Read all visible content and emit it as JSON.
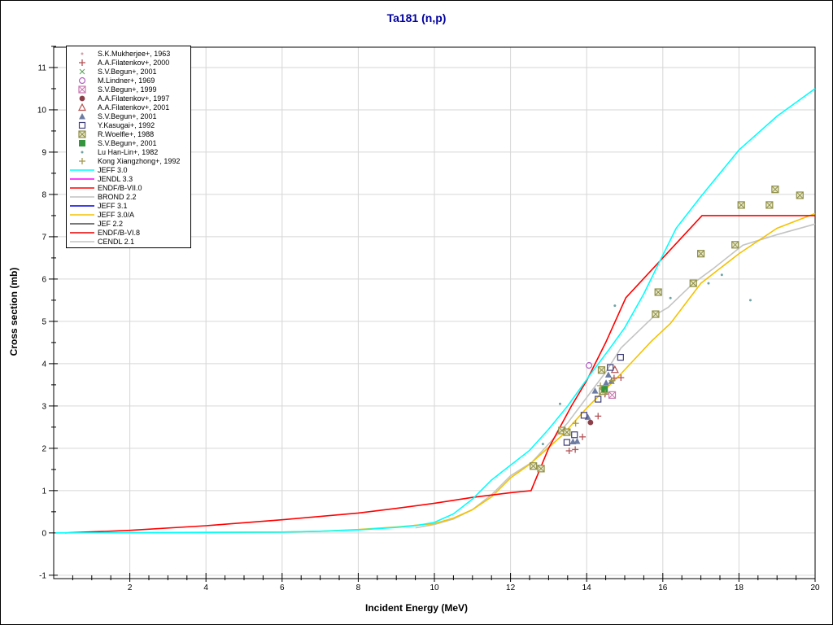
{
  "title": {
    "text": "Ta181 (n,p)"
  },
  "colors": {
    "background": "#ffffff",
    "frame": "#000000",
    "grid": "#d6d6d6",
    "title": "#0000a0"
  },
  "chart_data": {
    "type": "line",
    "title": "Ta181 (n,p)",
    "xlabel": "Incident Energy (MeV)",
    "ylabel": "Cross section (mb)",
    "xlim": [
      0,
      20
    ],
    "ylim": [
      -1.08,
      11.48
    ],
    "x_major_ticks": [
      2,
      4,
      6,
      8,
      10,
      12,
      14,
      16,
      18,
      20
    ],
    "y_major_ticks": [
      -1,
      0,
      1,
      2,
      3,
      4,
      5,
      6,
      7,
      8,
      9,
      10,
      11
    ],
    "minor_tick_step": 0.5,
    "grid": "on",
    "legend_position": "top-left",
    "series": [
      {
        "label": "S.K.Mukherjee+, 1963",
        "kind": "marker",
        "marker": "dot",
        "color": "#cfa0a8",
        "visible_in_plot": false,
        "points": []
      },
      {
        "label": "A.A.Filatenkov+, 2000",
        "kind": "marker",
        "marker": "plus",
        "color": "#b25458",
        "points": [
          [
            13.54,
            1.94
          ],
          [
            13.7,
            1.97
          ],
          [
            13.89,
            2.27
          ],
          [
            14.3,
            2.76
          ],
          [
            14.48,
            3.28
          ],
          [
            14.72,
            3.66
          ],
          [
            14.9,
            3.67
          ]
        ]
      },
      {
        "label": "S.V.Begun+, 2001",
        "kind": "marker",
        "marker": "x",
        "color": "#55a055",
        "visible_in_plot": false,
        "points": []
      },
      {
        "label": "M.Lindner+, 1969",
        "kind": "marker",
        "marker": "notched-circle",
        "color": "#b060c0",
        "points": [
          [
            14.06,
            3.96
          ]
        ]
      },
      {
        "label": "S.V.Begun+, 1999",
        "kind": "marker",
        "marker": "crossed-square",
        "color": "#c878b0",
        "points": [
          [
            14.67,
            3.26
          ]
        ]
      },
      {
        "label": "A.A.Filatenkov+, 1997",
        "kind": "marker",
        "marker": "blob",
        "color": "#8b4049",
        "points": [
          [
            14.1,
            2.61
          ]
        ]
      },
      {
        "label": "A.A.Filatenkov+, 2001",
        "kind": "marker",
        "marker": "triangle-open",
        "color": "#b4504e",
        "points": [
          [
            14.74,
            3.86
          ]
        ]
      },
      {
        "label": "S.V.Begun+, 2001",
        "kind": "marker",
        "marker": "triangle-filled",
        "color": "#6c7ca2",
        "points": [
          [
            13.64,
            2.16
          ],
          [
            13.75,
            2.17
          ],
          [
            14.03,
            2.74
          ],
          [
            14.22,
            3.36
          ],
          [
            14.51,
            3.55
          ],
          [
            14.57,
            3.74
          ],
          [
            14.65,
            3.59
          ]
        ]
      },
      {
        "label": "Y.Kasugai+, 1992",
        "kind": "marker",
        "marker": "square-open",
        "color": "#3f3f7a",
        "points": [
          [
            13.48,
            2.14
          ],
          [
            13.68,
            2.32
          ],
          [
            13.93,
            2.78
          ],
          [
            14.3,
            3.16
          ],
          [
            14.62,
            3.91
          ],
          [
            14.89,
            4.15
          ]
        ]
      },
      {
        "label": "R.Woelfle+, 1988",
        "kind": "marker",
        "marker": "crossed-square",
        "color": "#8f8f46",
        "fill": "#e9e9cf",
        "points": [
          [
            12.6,
            1.58
          ],
          [
            12.8,
            1.52
          ],
          [
            13.35,
            2.42
          ],
          [
            13.48,
            2.38
          ],
          [
            14.39,
            3.85
          ],
          [
            14.42,
            3.35
          ],
          [
            15.81,
            5.17
          ],
          [
            15.88,
            5.69
          ],
          [
            16.8,
            5.9
          ],
          [
            17.0,
            6.6
          ],
          [
            17.9,
            6.81
          ],
          [
            18.06,
            7.75
          ],
          [
            18.8,
            7.75
          ],
          [
            18.95,
            8.12
          ],
          [
            19.6,
            7.98
          ]
        ]
      },
      {
        "label": "S.V.Begun+, 2001",
        "kind": "marker",
        "marker": "square-filled",
        "color": "#35953f",
        "points": [
          [
            14.47,
            3.4
          ]
        ]
      },
      {
        "label": "Lu Han-Lin+, 1982",
        "kind": "marker",
        "marker": "dot",
        "color": "#6fa3a3",
        "points": [
          [
            12.85,
            2.1
          ],
          [
            13.3,
            3.05
          ],
          [
            14.74,
            5.37
          ],
          [
            16.2,
            5.55
          ],
          [
            17.2,
            5.9
          ],
          [
            17.55,
            6.1
          ],
          [
            18.3,
            5.5
          ]
        ]
      },
      {
        "label": "Kong Xiangzhong+, 1992",
        "kind": "marker",
        "marker": "plus",
        "color": "#a39a52",
        "points": [
          [
            13.71,
            2.59
          ],
          [
            14.36,
            3.48
          ],
          [
            14.49,
            3.31
          ],
          [
            14.67,
            3.6
          ]
        ]
      },
      {
        "label": "JEFF 3.0",
        "kind": "line",
        "color": "#00ffff",
        "points": [
          [
            0.05,
            0
          ],
          [
            3,
            0.01
          ],
          [
            6,
            0.02
          ],
          [
            7,
            0.04
          ],
          [
            8,
            0.07
          ],
          [
            9,
            0.13
          ],
          [
            9.5,
            0.17
          ],
          [
            10,
            0.25
          ],
          [
            10.5,
            0.45
          ],
          [
            11,
            0.8
          ],
          [
            11.5,
            1.25
          ],
          [
            12,
            1.6
          ],
          [
            12.5,
            1.95
          ],
          [
            13,
            2.45
          ],
          [
            13.5,
            3.0
          ],
          [
            14.1,
            3.75
          ],
          [
            14.6,
            4.35
          ],
          [
            15,
            4.85
          ],
          [
            15.5,
            5.65
          ],
          [
            15.8,
            6.2
          ],
          [
            16.35,
            7.2
          ],
          [
            17,
            7.95
          ],
          [
            18,
            9.05
          ],
          [
            19,
            9.85
          ],
          [
            20,
            10.5
          ]
        ]
      },
      {
        "label": "JENDL 3.3",
        "kind": "line",
        "color": "#ff00ff",
        "visible_in_plot": false,
        "points": []
      },
      {
        "label": "ENDF/B-VII.0",
        "kind": "line",
        "color": "#ff0000",
        "points": [
          [
            0.3,
            0
          ],
          [
            2,
            0.06
          ],
          [
            4,
            0.17
          ],
          [
            6,
            0.31
          ],
          [
            8,
            0.47
          ],
          [
            9,
            0.58
          ],
          [
            10,
            0.7
          ],
          [
            11,
            0.84
          ],
          [
            12,
            0.95
          ],
          [
            12.54,
            1.0
          ],
          [
            13,
            2.0
          ],
          [
            13.3,
            2.5
          ],
          [
            13.6,
            3.0
          ],
          [
            14,
            3.6
          ],
          [
            14.5,
            4.5
          ],
          [
            15.03,
            5.56
          ],
          [
            16,
            6.5
          ],
          [
            17.03,
            7.5
          ],
          [
            20,
            7.5
          ]
        ]
      },
      {
        "label": "BROND 2.2",
        "kind": "line",
        "color": "#c0c0c0",
        "visible_in_plot": false,
        "points": []
      },
      {
        "label": "JEFF 3.1",
        "kind": "line",
        "color": "#0000dc",
        "visible_in_plot": false,
        "points": []
      },
      {
        "label": "JEFF 3.0/A",
        "kind": "line",
        "color": "#f5c200",
        "points": [
          [
            0.05,
            0
          ],
          [
            6,
            0.02
          ],
          [
            7,
            0.04
          ],
          [
            8,
            0.08
          ],
          [
            9,
            0.14
          ],
          [
            10,
            0.22
          ],
          [
            10.5,
            0.35
          ],
          [
            11,
            0.55
          ],
          [
            11.5,
            0.85
          ],
          [
            12,
            1.3
          ],
          [
            12.5,
            1.62
          ],
          [
            13.35,
            2.3
          ],
          [
            14,
            2.95
          ],
          [
            14.9,
            3.76
          ],
          [
            15.7,
            4.53
          ],
          [
            16.2,
            4.95
          ],
          [
            17,
            5.9
          ],
          [
            17.5,
            6.25
          ],
          [
            18,
            6.6
          ],
          [
            19,
            7.2
          ],
          [
            20,
            7.55
          ]
        ]
      },
      {
        "label": "JEF 2.2",
        "kind": "line",
        "color": "#4d4d4d",
        "visible_in_plot": false,
        "points": []
      },
      {
        "label": "ENDF/B-VI.8",
        "kind": "line",
        "color": "#e60000",
        "visible_in_plot": false,
        "points": []
      },
      {
        "label": "CENDL 2.1",
        "kind": "line",
        "color": "#c4c4c4",
        "points": [
          [
            9.5,
            0.12
          ],
          [
            10,
            0.2
          ],
          [
            10.5,
            0.33
          ],
          [
            11,
            0.55
          ],
          [
            11.5,
            0.9
          ],
          [
            12,
            1.35
          ],
          [
            12.56,
            1.67
          ],
          [
            13,
            2.1
          ],
          [
            13.5,
            2.6
          ],
          [
            14,
            3.2
          ],
          [
            14.5,
            3.8
          ],
          [
            14.9,
            4.37
          ],
          [
            15.8,
            5.15
          ],
          [
            16.14,
            5.33
          ],
          [
            16.8,
            5.9
          ],
          [
            17.3,
            6.23
          ],
          [
            18.1,
            6.8
          ],
          [
            19,
            7.05
          ],
          [
            20,
            7.3
          ]
        ]
      }
    ]
  }
}
